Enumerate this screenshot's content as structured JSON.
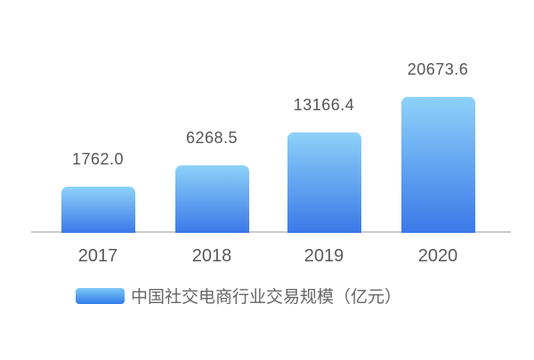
{
  "chart_data": {
    "type": "bar",
    "title": "",
    "categories": [
      "2017",
      "2018",
      "2019",
      "2020"
    ],
    "values": [
      1762.0,
      6268.5,
      13166.4,
      20673.6
    ],
    "value_labels": [
      "1762.0",
      "6268.5",
      "13166.4",
      "20673.6"
    ],
    "legend": "中国社交电商行业交易规模（亿元）",
    "unit": "亿元",
    "xlabel": "",
    "ylabel": "",
    "ylim": [
      0,
      20673.6
    ],
    "grid": false,
    "legend_position": "bottom",
    "colors": {
      "bar_top": "#8DD2F9",
      "bar_bottom": "#3A79E8",
      "legend_top": "#7ECAF6",
      "legend_bottom": "#2F7BE9",
      "axis": "#CCCCCC",
      "value_text": "#555555",
      "tick_text": "#595959",
      "legend_text": "#666666",
      "background": "#FFFFFF"
    }
  }
}
